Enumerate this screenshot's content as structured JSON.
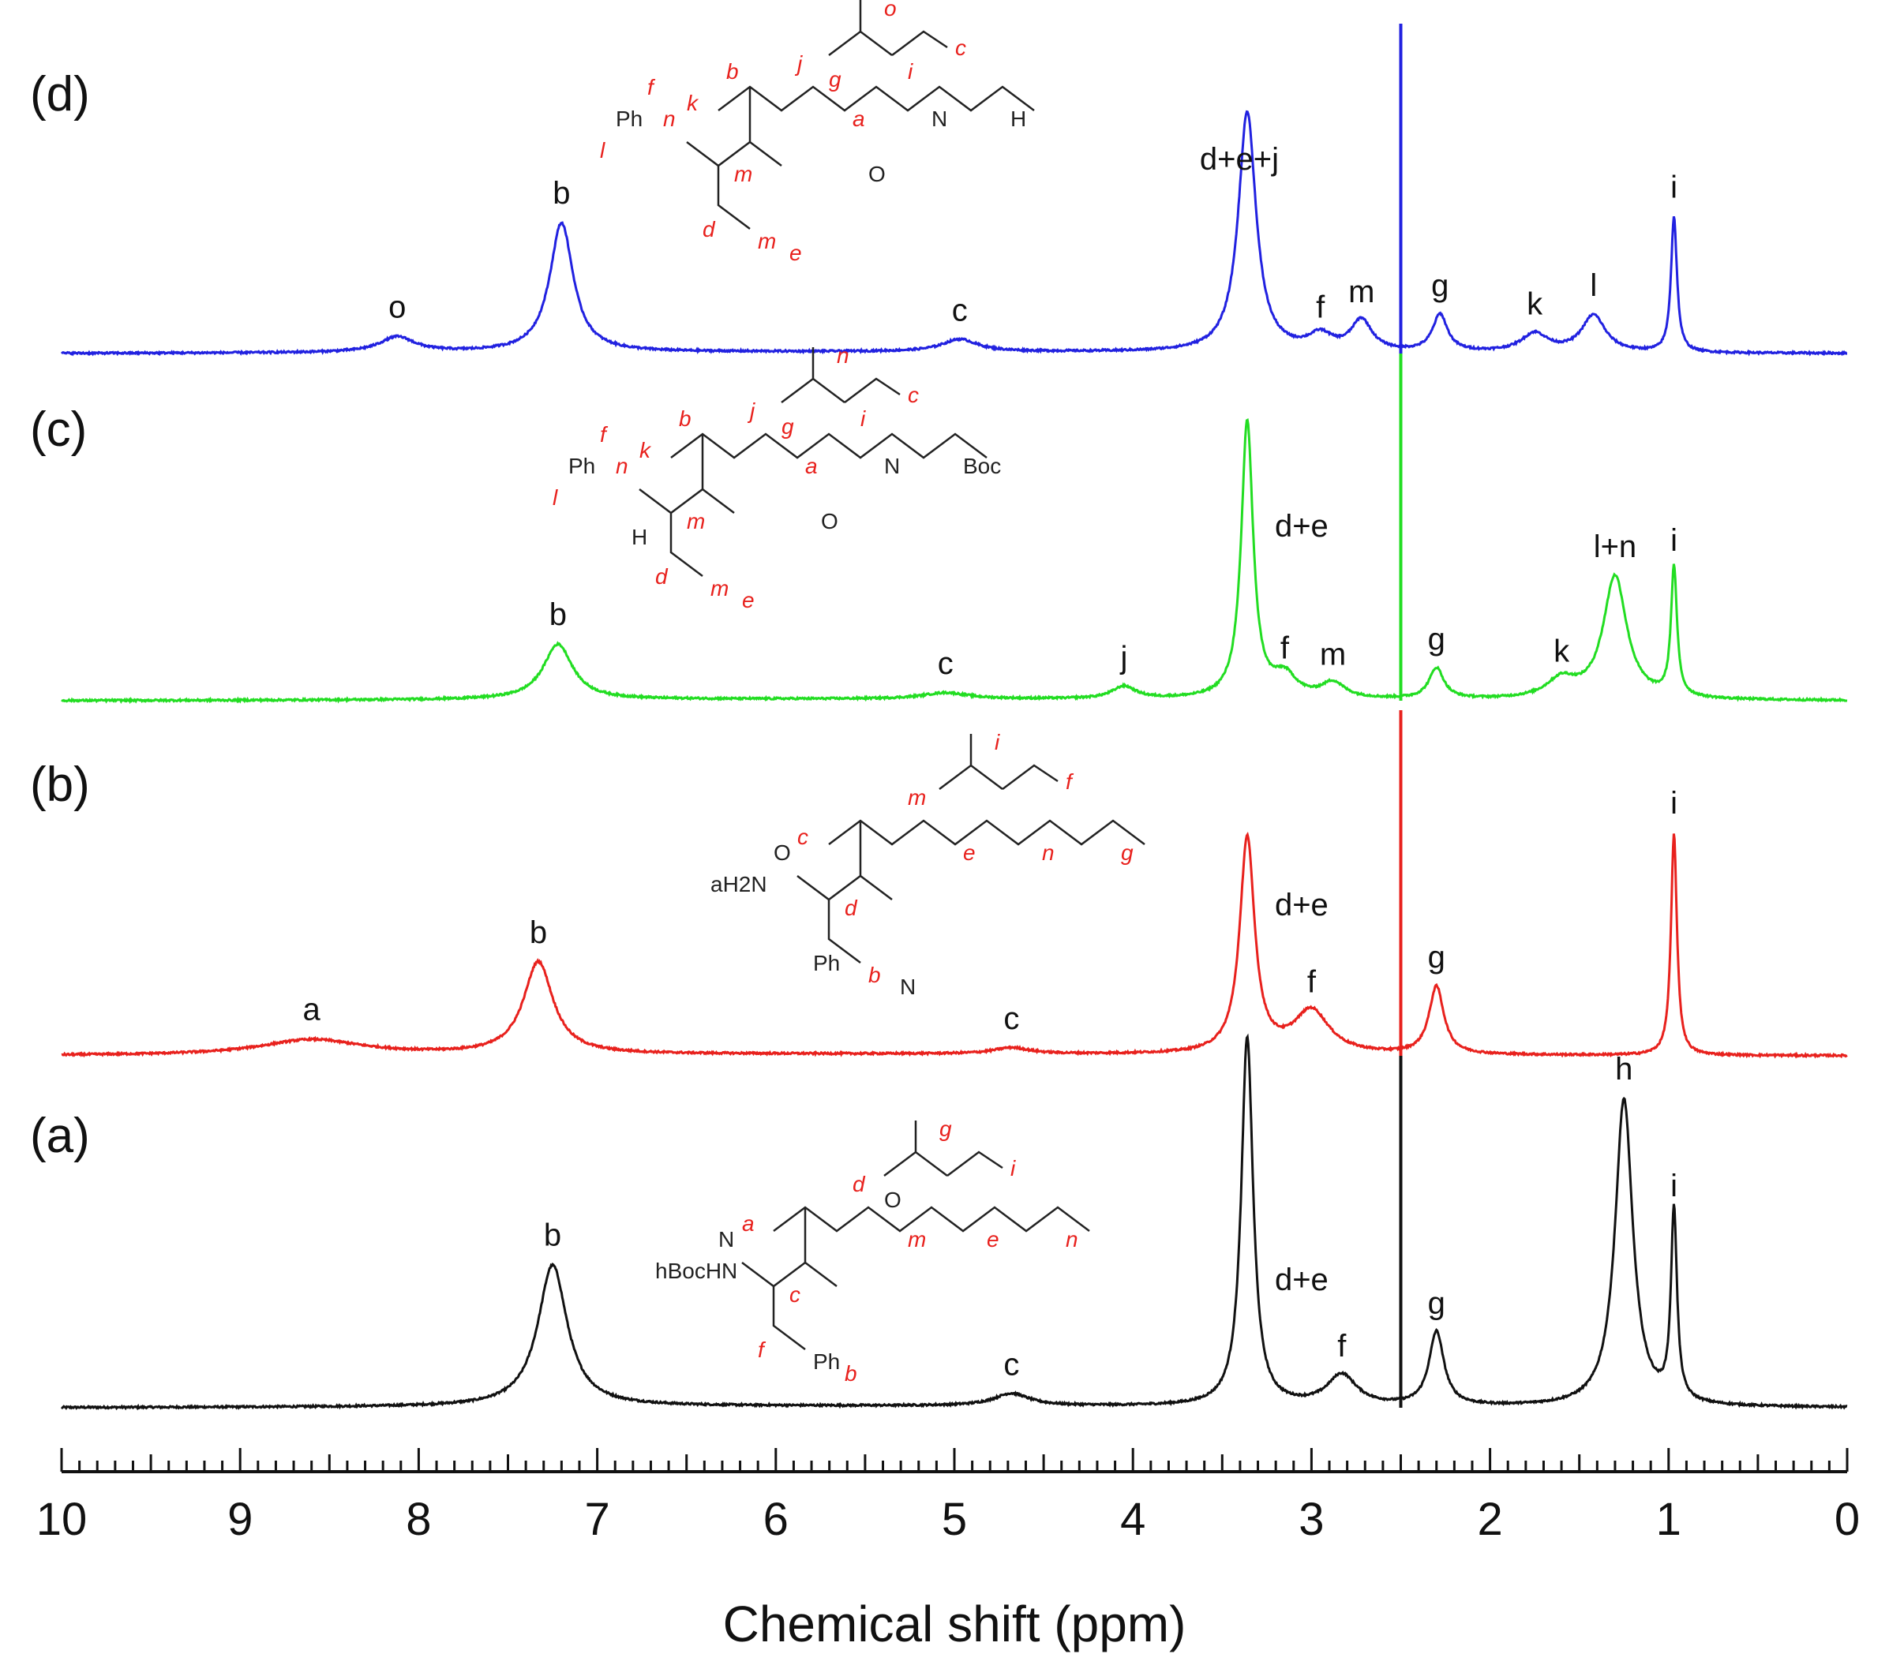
{
  "chart_data": {
    "type": "line",
    "xlabel": "Chemical shift (ppm)",
    "xlim": [
      10,
      0
    ],
    "x_reversed": true,
    "x_ticks": [
      10,
      9,
      8,
      7,
      6,
      5,
      4,
      3,
      2,
      1,
      0
    ],
    "grid": false,
    "legend": "none",
    "colors": {
      "a": "#111111",
      "b": "#e8211d",
      "c": "#22dd22",
      "d": "#2121e0"
    },
    "solvent_peak_ppm": 2.5,
    "series": [
      {
        "name": "(a)",
        "color": "#111111",
        "peaks": [
          {
            "label": "b",
            "ppm": 7.25,
            "height": 0.46,
            "width": 0.1
          },
          {
            "label": "c",
            "ppm": 4.68,
            "height": 0.04,
            "width": 0.12
          },
          {
            "label": "d+e",
            "ppm": 3.36,
            "height": 1.2,
            "width": 0.04
          },
          {
            "label": "f",
            "ppm": 2.83,
            "height": 0.1,
            "width": 0.1
          },
          {
            "label": "g",
            "ppm": 2.3,
            "height": 0.24,
            "width": 0.05
          },
          {
            "label": "h",
            "ppm": 1.25,
            "height": 1.0,
            "width": 0.06
          },
          {
            "label": "i",
            "ppm": 0.97,
            "height": 0.62,
            "width": 0.02
          }
        ],
        "structure_labels": [
          "hBocHN",
          "a",
          "c",
          "d",
          "m",
          "e",
          "n",
          "g",
          "i",
          "f",
          "Ph",
          "b",
          "N",
          "O"
        ]
      },
      {
        "name": "(b)",
        "color": "#e8211d",
        "peaks": [
          {
            "label": "a",
            "ppm": 8.6,
            "height": 0.05,
            "width": 0.35
          },
          {
            "label": "b",
            "ppm": 7.33,
            "height": 0.3,
            "width": 0.1
          },
          {
            "label": "c",
            "ppm": 4.68,
            "height": 0.02,
            "width": 0.12
          },
          {
            "label": "d+e",
            "ppm": 3.36,
            "height": 0.7,
            "width": 0.05
          },
          {
            "label": "f",
            "ppm": 3.0,
            "height": 0.14,
            "width": 0.12
          },
          {
            "label": "g",
            "ppm": 2.3,
            "height": 0.22,
            "width": 0.05
          },
          {
            "label": "i",
            "ppm": 0.97,
            "height": 0.72,
            "width": 0.02
          }
        ],
        "structure_labels": [
          "aH2N",
          "c",
          "d",
          "m",
          "e",
          "n",
          "g",
          "i",
          "f",
          "Ph",
          "b",
          "N",
          "O"
        ]
      },
      {
        "name": "(c)",
        "color": "#22dd22",
        "peaks": [
          {
            "label": "b",
            "ppm": 7.22,
            "height": 0.18,
            "width": 0.1
          },
          {
            "label": "c",
            "ppm": 5.05,
            "height": 0.02,
            "width": 0.15
          },
          {
            "label": "j",
            "ppm": 4.05,
            "height": 0.04,
            "width": 0.08
          },
          {
            "label": "d+e",
            "ppm": 3.36,
            "height": 0.9,
            "width": 0.04
          },
          {
            "label": "f",
            "ppm": 3.15,
            "height": 0.07,
            "width": 0.08
          },
          {
            "label": "m",
            "ppm": 2.88,
            "height": 0.05,
            "width": 0.08
          },
          {
            "label": "g",
            "ppm": 2.3,
            "height": 0.1,
            "width": 0.05
          },
          {
            "label": "k",
            "ppm": 1.6,
            "height": 0.06,
            "width": 0.1
          },
          {
            "label": "l+n",
            "ppm": 1.3,
            "height": 0.4,
            "width": 0.08
          },
          {
            "label": "i",
            "ppm": 0.97,
            "height": 0.42,
            "width": 0.02
          }
        ],
        "structure_labels": [
          "l",
          "k",
          "m",
          "j",
          "a",
          "N",
          "Boc",
          "n",
          "c",
          "d",
          "m",
          "e",
          "n",
          "g",
          "i",
          "f",
          "Ph",
          "b",
          "O",
          "H"
        ]
      },
      {
        "name": "(d)",
        "color": "#2121e0",
        "peaks": [
          {
            "label": "o",
            "ppm": 8.12,
            "height": 0.05,
            "width": 0.12
          },
          {
            "label": "b",
            "ppm": 7.2,
            "height": 0.42,
            "width": 0.08
          },
          {
            "label": "c",
            "ppm": 4.97,
            "height": 0.04,
            "width": 0.12
          },
          {
            "label": "d+e+j",
            "ppm": 3.36,
            "height": 0.78,
            "width": 0.06
          },
          {
            "label": "f",
            "ppm": 2.95,
            "height": 0.05,
            "width": 0.08
          },
          {
            "label": "m",
            "ppm": 2.72,
            "height": 0.1,
            "width": 0.07
          },
          {
            "label": "g",
            "ppm": 2.28,
            "height": 0.12,
            "width": 0.05
          },
          {
            "label": "k",
            "ppm": 1.75,
            "height": 0.06,
            "width": 0.09
          },
          {
            "label": "l",
            "ppm": 1.42,
            "height": 0.12,
            "width": 0.08
          },
          {
            "label": "i",
            "ppm": 0.97,
            "height": 0.44,
            "width": 0.02
          }
        ],
        "structure_labels": [
          "l",
          "k",
          "m",
          "j",
          "a",
          "N",
          "H",
          "o",
          "c",
          "d",
          "m",
          "e",
          "n",
          "g",
          "i",
          "f",
          "Ph",
          "b",
          "O"
        ]
      }
    ]
  }
}
